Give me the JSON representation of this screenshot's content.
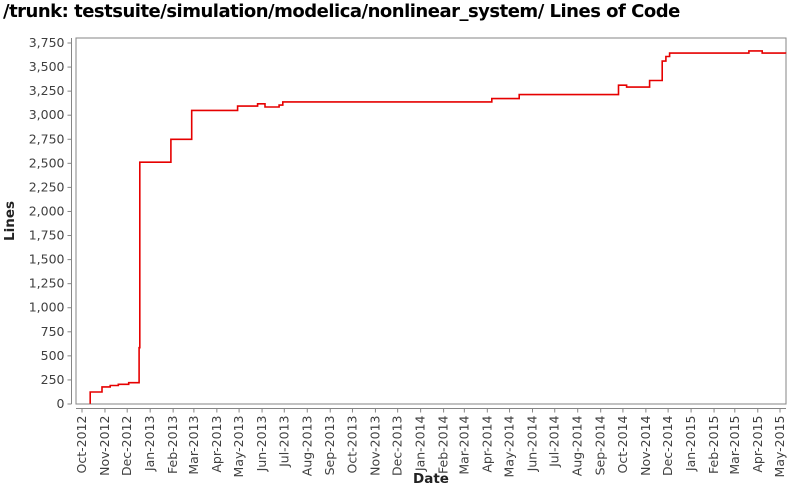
{
  "title": "/trunk: testsuite/simulation/modelica/nonlinear_system/ Lines of Code",
  "colors": {
    "line": "#e60000",
    "axis": "#858585",
    "border": "#858585",
    "tick_label": "#3f3f3f",
    "axis_label": "#222222",
    "title": "#000000",
    "background": "#ffffff"
  },
  "chart_data": {
    "type": "line",
    "line_style": "step-after",
    "title": "/trunk: testsuite/simulation/modelica/nonlinear_system/ Lines of Code",
    "xlabel": "Date",
    "ylabel": "Lines",
    "grid": false,
    "legend": false,
    "x_axis": {
      "start": "2012-10-01",
      "end": "2015-05-01",
      "tick_labels": [
        "Oct-2012",
        "Nov-2012",
        "Dec-2012",
        "Jan-2013",
        "Feb-2013",
        "Mar-2013",
        "Apr-2013",
        "May-2013",
        "Jun-2013",
        "Jul-2013",
        "Aug-2013",
        "Sep-2013",
        "Oct-2013",
        "Nov-2013",
        "Dec-2013",
        "Jan-2014",
        "Feb-2014",
        "Mar-2014",
        "Apr-2014",
        "May-2014",
        "Jun-2014",
        "Jul-2014",
        "Aug-2014",
        "Sep-2014",
        "Oct-2014",
        "Nov-2014",
        "Dec-2014",
        "Jan-2015",
        "Feb-2015",
        "Mar-2015",
        "Apr-2015",
        "May-2015"
      ]
    },
    "y_axis": {
      "min": 0,
      "max": 3750,
      "tick_step": 250,
      "tick_labels": [
        "0",
        "250",
        "500",
        "750",
        "1,000",
        "1,250",
        "1,500",
        "1,750",
        "2,000",
        "2,250",
        "2,500",
        "2,750",
        "3,000",
        "3,250",
        "3,500",
        "3,750"
      ]
    },
    "series": [
      {
        "name": "Lines of Code",
        "points": [
          {
            "date": "2012-10-11",
            "value": 10
          },
          {
            "date": "2012-10-12",
            "value": 125
          },
          {
            "date": "2012-10-28",
            "value": 178
          },
          {
            "date": "2012-11-08",
            "value": 192
          },
          {
            "date": "2012-11-19",
            "value": 205
          },
          {
            "date": "2012-12-03",
            "value": 221
          },
          {
            "date": "2012-12-17",
            "value": 585
          },
          {
            "date": "2012-12-18",
            "value": 2512
          },
          {
            "date": "2013-01-29",
            "value": 2750
          },
          {
            "date": "2013-02-26",
            "value": 3050
          },
          {
            "date": "2013-04-29",
            "value": 3095
          },
          {
            "date": "2013-05-26",
            "value": 3118
          },
          {
            "date": "2013-06-05",
            "value": 3085
          },
          {
            "date": "2013-06-24",
            "value": 3105
          },
          {
            "date": "2013-06-29",
            "value": 3138
          },
          {
            "date": "2014-04-07",
            "value": 3172
          },
          {
            "date": "2014-05-14",
            "value": 3214
          },
          {
            "date": "2014-09-25",
            "value": 3312
          },
          {
            "date": "2014-10-06",
            "value": 3292
          },
          {
            "date": "2014-11-06",
            "value": 3360
          },
          {
            "date": "2014-11-23",
            "value": 3562
          },
          {
            "date": "2014-11-28",
            "value": 3610
          },
          {
            "date": "2014-12-03",
            "value": 3645
          },
          {
            "date": "2015-03-20",
            "value": 3668
          },
          {
            "date": "2015-04-07",
            "value": 3645
          },
          {
            "date": "2015-05-10",
            "value": 3640
          }
        ]
      }
    ]
  }
}
